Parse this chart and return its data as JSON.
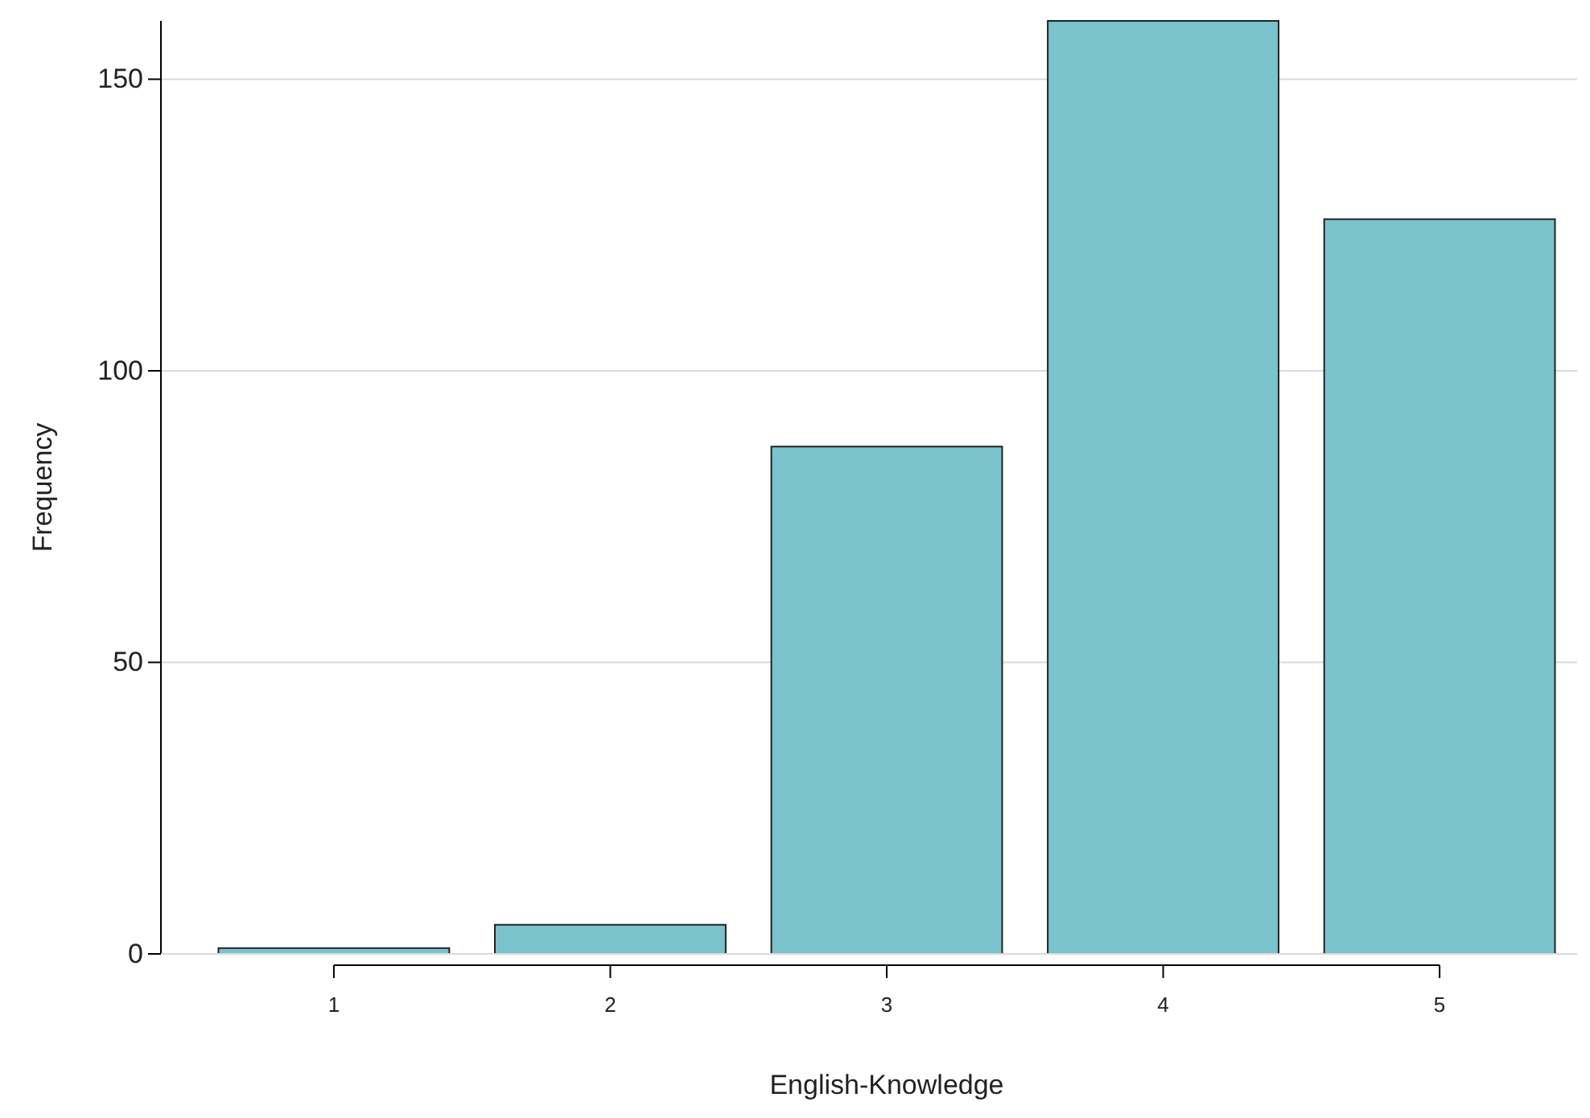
{
  "chart_data": {
    "type": "bar",
    "xlabel": "English-Knowledge",
    "ylabel": "Frequency",
    "categories": [
      "1",
      "2",
      "3",
      "4",
      "5"
    ],
    "values": [
      1,
      5,
      87,
      160,
      126
    ],
    "color": "#7ac3cc",
    "ylim": [
      0,
      160
    ],
    "yticks": [
      0,
      50,
      100,
      150
    ],
    "grid": "y"
  }
}
